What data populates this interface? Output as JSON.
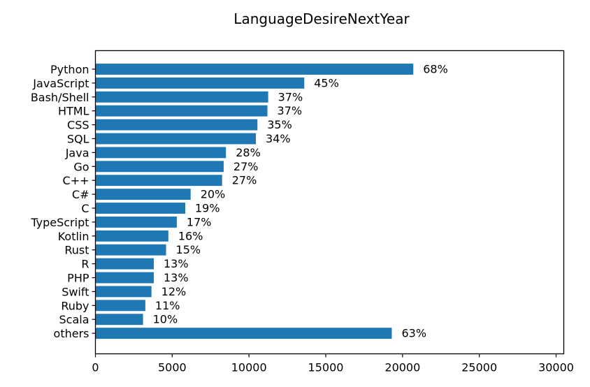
{
  "chart_data": {
    "type": "bar",
    "orientation": "horizontal",
    "title": "LanguageDesireNextYear",
    "xlabel": "",
    "ylabel": "",
    "xlim": [
      0,
      30500
    ],
    "xticks": [
      "0",
      "5000",
      "10000",
      "15000",
      "20000",
      "25000",
      "30000"
    ],
    "grid": false,
    "bar_color": "#1f77b4",
    "categories": [
      "Python",
      "JavaScript",
      "Bash/Shell",
      "HTML",
      "CSS",
      "SQL",
      "Java",
      "Go",
      "C++",
      "C#",
      "C",
      "TypeScript",
      "Kotlin",
      "Rust",
      "R",
      "PHP",
      "Swift",
      "Ruby",
      "Scala",
      "others"
    ],
    "values": [
      20700,
      13600,
      11250,
      11200,
      10550,
      10450,
      8500,
      8350,
      8250,
      6200,
      5850,
      5300,
      4750,
      4600,
      3800,
      3800,
      3650,
      3250,
      3100,
      19300
    ],
    "labels": [
      "68%",
      "45%",
      "37%",
      "37%",
      "35%",
      "34%",
      "28%",
      "27%",
      "27%",
      "20%",
      "19%",
      "17%",
      "16%",
      "15%",
      "13%",
      "13%",
      "12%",
      "11%",
      "10%",
      "63%"
    ]
  }
}
